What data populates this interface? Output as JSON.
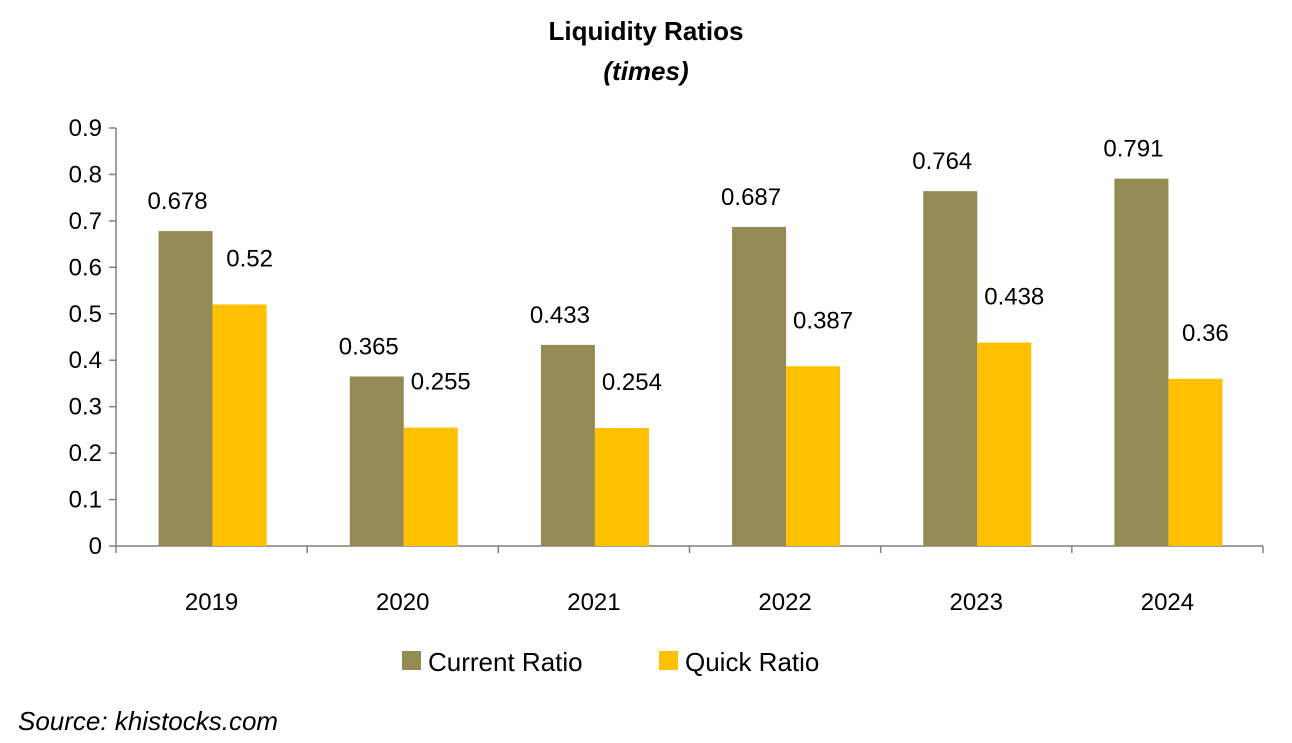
{
  "chart_data": {
    "type": "bar",
    "title": "Liquidity Ratios",
    "subtitle": "(times)",
    "categories": [
      "2019",
      "2020",
      "2021",
      "2022",
      "2023",
      "2024"
    ],
    "series": [
      {
        "name": "Current Ratio",
        "color": "#948A54",
        "values": [
          0.678,
          0.365,
          0.433,
          0.687,
          0.764,
          0.791
        ]
      },
      {
        "name": "Quick Ratio",
        "color": "#FFC000",
        "values": [
          0.52,
          0.255,
          0.254,
          0.387,
          0.438,
          0.36
        ]
      }
    ],
    "ylim": [
      0,
      0.9
    ],
    "yticks": [
      "0",
      "0.1",
      "0.2",
      "0.3",
      "0.4",
      "0.5",
      "0.6",
      "0.7",
      "0.8",
      "0.9"
    ],
    "xlabel": "",
    "ylabel": "",
    "grid": false,
    "legend_position": "bottom",
    "data_labels": true
  },
  "source": "Source: khistocks.com"
}
